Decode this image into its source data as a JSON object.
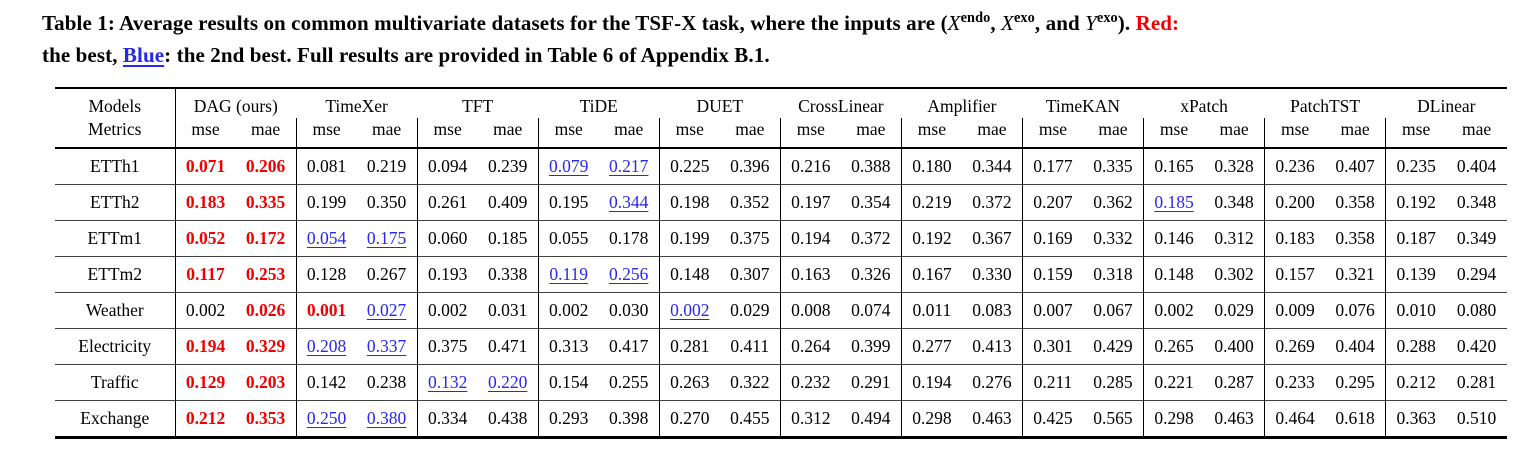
{
  "colors": {
    "best": "#f20000",
    "second": "#2727ee",
    "text": "#000000"
  },
  "caption": {
    "label": "Table 1: ",
    "seg1": "Average results on common multivariate datasets for the TSF-X task, where the inputs are (",
    "var1": "X",
    "sup1": "endo",
    "sep1": ", ",
    "var2": "X",
    "sup2": "exo",
    "sep2": ", and ",
    "var3": "Y",
    "sup3": "exo",
    "seg2": "). ",
    "red_word": "Red:",
    "line2_start": "the best, ",
    "blue_word": "Blue",
    "seg4": ": the 2nd best. Full results are provided in Table 6 of Appendix B.1."
  },
  "table": {
    "header": {
      "models_label": "Models",
      "metrics_label": "Metrics",
      "groups": [
        "DAG (ours)",
        "TimeXer",
        "TFT",
        "TiDE",
        "DUET",
        "CrossLinear",
        "Amplifier",
        "TimeKAN",
        "xPatch",
        "PatchTST",
        "DLinear"
      ],
      "metric_names": [
        "mse",
        "mae"
      ]
    },
    "rows": [
      {
        "dataset": "ETTh1",
        "cells": [
          {
            "v": "0.071",
            "s": "best"
          },
          {
            "v": "0.206",
            "s": "best"
          },
          {
            "v": "0.081"
          },
          {
            "v": "0.219"
          },
          {
            "v": "0.094"
          },
          {
            "v": "0.239"
          },
          {
            "v": "0.079",
            "s": "second"
          },
          {
            "v": "0.217",
            "s": "second"
          },
          {
            "v": "0.225"
          },
          {
            "v": "0.396"
          },
          {
            "v": "0.216"
          },
          {
            "v": "0.388"
          },
          {
            "v": "0.180"
          },
          {
            "v": "0.344"
          },
          {
            "v": "0.177"
          },
          {
            "v": "0.335"
          },
          {
            "v": "0.165"
          },
          {
            "v": "0.328"
          },
          {
            "v": "0.236"
          },
          {
            "v": "0.407"
          },
          {
            "v": "0.235"
          },
          {
            "v": "0.404"
          }
        ]
      },
      {
        "dataset": "ETTh2",
        "cells": [
          {
            "v": "0.183",
            "s": "best"
          },
          {
            "v": "0.335",
            "s": "best"
          },
          {
            "v": "0.199"
          },
          {
            "v": "0.350"
          },
          {
            "v": "0.261"
          },
          {
            "v": "0.409"
          },
          {
            "v": "0.195"
          },
          {
            "v": "0.344",
            "s": "second"
          },
          {
            "v": "0.198"
          },
          {
            "v": "0.352"
          },
          {
            "v": "0.197"
          },
          {
            "v": "0.354"
          },
          {
            "v": "0.219"
          },
          {
            "v": "0.372"
          },
          {
            "v": "0.207"
          },
          {
            "v": "0.362"
          },
          {
            "v": "0.185",
            "s": "second"
          },
          {
            "v": "0.348"
          },
          {
            "v": "0.200"
          },
          {
            "v": "0.358"
          },
          {
            "v": "0.192"
          },
          {
            "v": "0.348"
          }
        ]
      },
      {
        "dataset": "ETTm1",
        "cells": [
          {
            "v": "0.052",
            "s": "best"
          },
          {
            "v": "0.172",
            "s": "best"
          },
          {
            "v": "0.054",
            "s": "second"
          },
          {
            "v": "0.175",
            "s": "second"
          },
          {
            "v": "0.060"
          },
          {
            "v": "0.185"
          },
          {
            "v": "0.055"
          },
          {
            "v": "0.178"
          },
          {
            "v": "0.199"
          },
          {
            "v": "0.375"
          },
          {
            "v": "0.194"
          },
          {
            "v": "0.372"
          },
          {
            "v": "0.192"
          },
          {
            "v": "0.367"
          },
          {
            "v": "0.169"
          },
          {
            "v": "0.332"
          },
          {
            "v": "0.146"
          },
          {
            "v": "0.312"
          },
          {
            "v": "0.183"
          },
          {
            "v": "0.358"
          },
          {
            "v": "0.187"
          },
          {
            "v": "0.349"
          }
        ]
      },
      {
        "dataset": "ETTm2",
        "cells": [
          {
            "v": "0.117",
            "s": "best"
          },
          {
            "v": "0.253",
            "s": "best"
          },
          {
            "v": "0.128"
          },
          {
            "v": "0.267"
          },
          {
            "v": "0.193"
          },
          {
            "v": "0.338"
          },
          {
            "v": "0.119",
            "s": "second"
          },
          {
            "v": "0.256",
            "s": "second"
          },
          {
            "v": "0.148"
          },
          {
            "v": "0.307"
          },
          {
            "v": "0.163"
          },
          {
            "v": "0.326"
          },
          {
            "v": "0.167"
          },
          {
            "v": "0.330"
          },
          {
            "v": "0.159"
          },
          {
            "v": "0.318"
          },
          {
            "v": "0.148"
          },
          {
            "v": "0.302"
          },
          {
            "v": "0.157"
          },
          {
            "v": "0.321"
          },
          {
            "v": "0.139"
          },
          {
            "v": "0.294"
          }
        ]
      },
      {
        "dataset": "Weather",
        "cells": [
          {
            "v": "0.002"
          },
          {
            "v": "0.026",
            "s": "best"
          },
          {
            "v": "0.001",
            "s": "best"
          },
          {
            "v": "0.027",
            "s": "second"
          },
          {
            "v": "0.002"
          },
          {
            "v": "0.031"
          },
          {
            "v": "0.002"
          },
          {
            "v": "0.030"
          },
          {
            "v": "0.002",
            "s": "second"
          },
          {
            "v": "0.029"
          },
          {
            "v": "0.008"
          },
          {
            "v": "0.074"
          },
          {
            "v": "0.011"
          },
          {
            "v": "0.083"
          },
          {
            "v": "0.007"
          },
          {
            "v": "0.067"
          },
          {
            "v": "0.002"
          },
          {
            "v": "0.029"
          },
          {
            "v": "0.009"
          },
          {
            "v": "0.076"
          },
          {
            "v": "0.010"
          },
          {
            "v": "0.080"
          }
        ]
      },
      {
        "dataset": "Electricity",
        "cells": [
          {
            "v": "0.194",
            "s": "best"
          },
          {
            "v": "0.329",
            "s": "best"
          },
          {
            "v": "0.208",
            "s": "second"
          },
          {
            "v": "0.337",
            "s": "second"
          },
          {
            "v": "0.375"
          },
          {
            "v": "0.471"
          },
          {
            "v": "0.313"
          },
          {
            "v": "0.417"
          },
          {
            "v": "0.281"
          },
          {
            "v": "0.411"
          },
          {
            "v": "0.264"
          },
          {
            "v": "0.399"
          },
          {
            "v": "0.277"
          },
          {
            "v": "0.413"
          },
          {
            "v": "0.301"
          },
          {
            "v": "0.429"
          },
          {
            "v": "0.265"
          },
          {
            "v": "0.400"
          },
          {
            "v": "0.269"
          },
          {
            "v": "0.404"
          },
          {
            "v": "0.288"
          },
          {
            "v": "0.420"
          }
        ]
      },
      {
        "dataset": "Traffic",
        "cells": [
          {
            "v": "0.129",
            "s": "best"
          },
          {
            "v": "0.203",
            "s": "best"
          },
          {
            "v": "0.142"
          },
          {
            "v": "0.238"
          },
          {
            "v": "0.132",
            "s": "second"
          },
          {
            "v": "0.220",
            "s": "second"
          },
          {
            "v": "0.154"
          },
          {
            "v": "0.255"
          },
          {
            "v": "0.263"
          },
          {
            "v": "0.322"
          },
          {
            "v": "0.232"
          },
          {
            "v": "0.291"
          },
          {
            "v": "0.194"
          },
          {
            "v": "0.276"
          },
          {
            "v": "0.211"
          },
          {
            "v": "0.285"
          },
          {
            "v": "0.221"
          },
          {
            "v": "0.287"
          },
          {
            "v": "0.233"
          },
          {
            "v": "0.295"
          },
          {
            "v": "0.212"
          },
          {
            "v": "0.281"
          }
        ]
      },
      {
        "dataset": "Exchange",
        "cells": [
          {
            "v": "0.212",
            "s": "best"
          },
          {
            "v": "0.353",
            "s": "best"
          },
          {
            "v": "0.250",
            "s": "second"
          },
          {
            "v": "0.380",
            "s": "second"
          },
          {
            "v": "0.334"
          },
          {
            "v": "0.438"
          },
          {
            "v": "0.293"
          },
          {
            "v": "0.398"
          },
          {
            "v": "0.270"
          },
          {
            "v": "0.455"
          },
          {
            "v": "0.312"
          },
          {
            "v": "0.494"
          },
          {
            "v": "0.298"
          },
          {
            "v": "0.463"
          },
          {
            "v": "0.425"
          },
          {
            "v": "0.565"
          },
          {
            "v": "0.298"
          },
          {
            "v": "0.463"
          },
          {
            "v": "0.464"
          },
          {
            "v": "0.618"
          },
          {
            "v": "0.363"
          },
          {
            "v": "0.510"
          }
        ]
      }
    ]
  }
}
